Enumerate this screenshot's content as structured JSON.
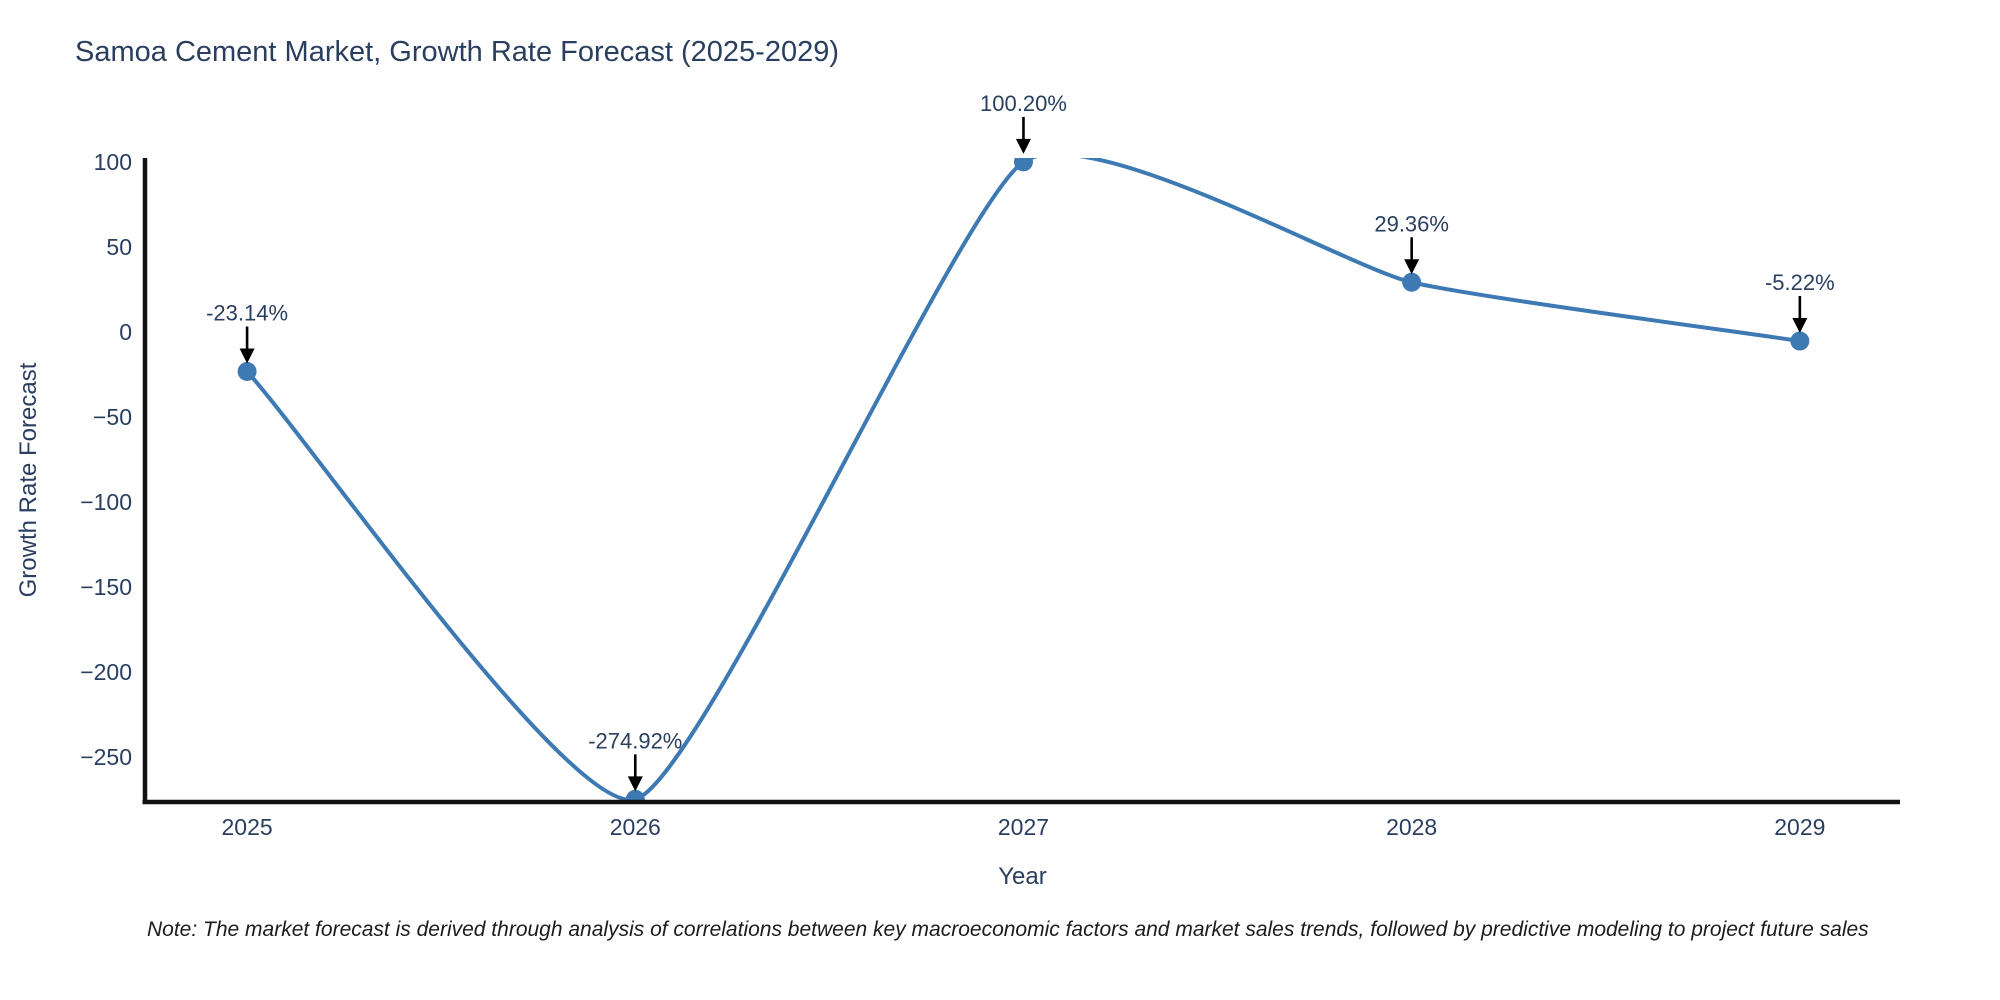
{
  "title": "Samoa Cement Market, Growth Rate Forecast (2025-2029)",
  "note": "Note: The market forecast is derived through analysis of correlations between key macroeconomic factors and market sales trends, followed by predictive modeling to project future sales",
  "chart_data": {
    "type": "line",
    "line_shape": "spline",
    "title": "Samoa Cement Market, Growth Rate Forecast (2025-2029)",
    "xlabel": "Year",
    "ylabel": "Growth Rate Forecast",
    "x": [
      2025,
      2026,
      2027,
      2028,
      2029
    ],
    "y": [
      -23.14,
      -274.92,
      100.2,
      29.36,
      -5.22
    ],
    "point_labels": [
      "-23.14%",
      "-274.92%",
      "100.20%",
      "29.36%",
      "-5.22%"
    ],
    "xtick_labels": [
      "2025",
      "2026",
      "2027",
      "2028",
      "2029"
    ],
    "xtick_values": [
      2025,
      2026,
      2027,
      2028,
      2029
    ],
    "ytick_labels": [
      "100",
      "50",
      "0",
      "−50",
      "−100",
      "−150",
      "−200",
      "−250"
    ],
    "ytick_values": [
      100,
      50,
      0,
      -50,
      -100,
      -150,
      -200,
      -250
    ],
    "x_range": [
      2024.737,
      2029.258
    ],
    "y_range": [
      -276.5,
      102.5
    ],
    "grid": false,
    "legend": "none",
    "line_color": "#3d7ab4",
    "marker_color": "#3d7ab4",
    "axis_line_color": "#111111",
    "text_color": "#2a3f5f",
    "annotation_arrow_color": "#000000"
  }
}
